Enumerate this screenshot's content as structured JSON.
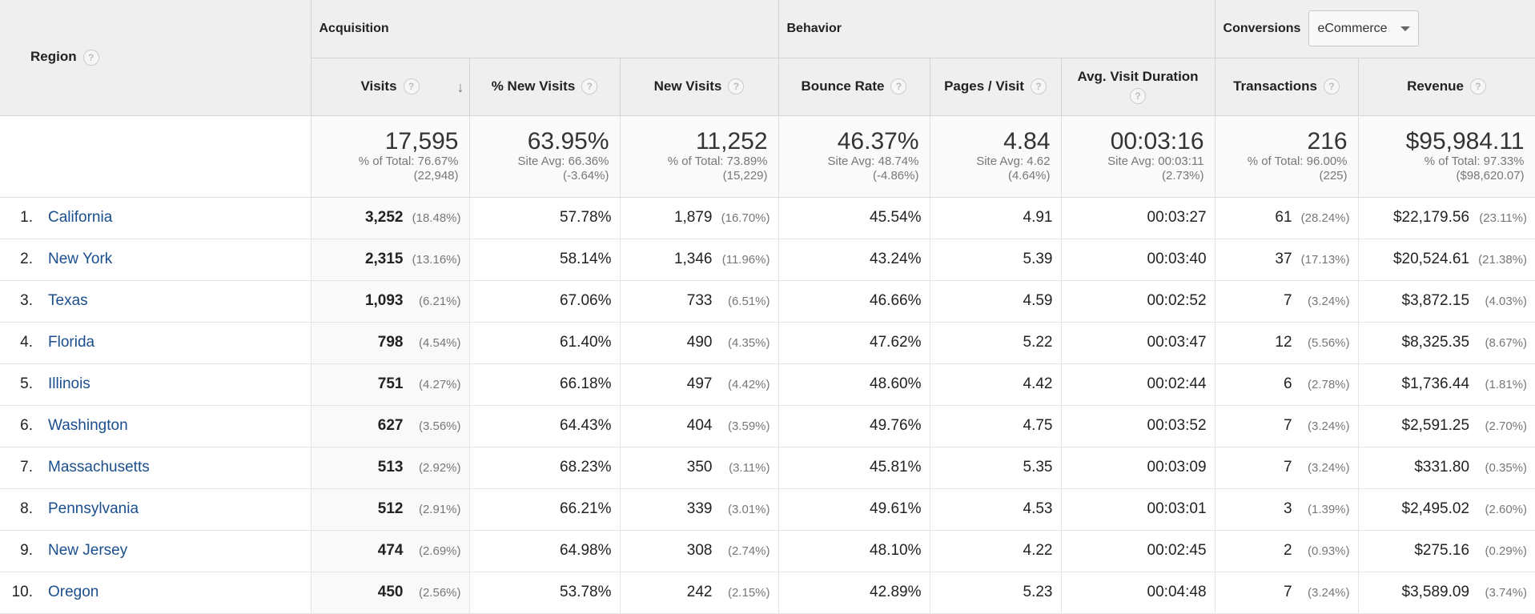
{
  "header": {
    "region_label": "Region",
    "group_acquisition": "Acquisition",
    "group_behavior": "Behavior",
    "group_conversions": "Conversions",
    "conversion_select_value": "eCommerce",
    "help_glyph": "?",
    "sort_glyph": "↓",
    "columns": [
      "Visits",
      "% New Visits",
      "New Visits",
      "Bounce Rate",
      "Pages / Visit",
      "Avg. Visit Duration",
      "Transactions",
      "Revenue"
    ]
  },
  "totals": [
    {
      "value": "17,595",
      "line1": "% of Total: 76.67%",
      "line2": "(22,948)"
    },
    {
      "value": "63.95%",
      "line1": "Site Avg: 66.36%",
      "line2": "(-3.64%)"
    },
    {
      "value": "11,252",
      "line1": "% of Total: 73.89%",
      "line2": "(15,229)"
    },
    {
      "value": "46.37%",
      "line1": "Site Avg: 48.74%",
      "line2": "(-4.86%)"
    },
    {
      "value": "4.84",
      "line1": "Site Avg: 4.62",
      "line2": "(4.64%)"
    },
    {
      "value": "00:03:16",
      "line1": "Site Avg: 00:03:11",
      "line2": "(2.73%)"
    },
    {
      "value": "216",
      "line1": "% of Total: 96.00%",
      "line2": "(225)"
    },
    {
      "value": "$95,984.11",
      "line1": "% of Total: 97.33%",
      "line2": "($98,620.07)"
    }
  ],
  "rows": [
    {
      "idx": "1.",
      "region": "California",
      "visits": "3,252",
      "visits_pct": "(18.48%)",
      "new_pct": "57.78%",
      "new_visits": "1,879",
      "new_visits_pct": "(16.70%)",
      "bounce": "45.54%",
      "pages": "4.91",
      "duration": "00:03:27",
      "trans": "61",
      "trans_pct": "(28.24%)",
      "revenue": "$22,179.56",
      "revenue_pct": "(23.11%)"
    },
    {
      "idx": "2.",
      "region": "New York",
      "visits": "2,315",
      "visits_pct": "(13.16%)",
      "new_pct": "58.14%",
      "new_visits": "1,346",
      "new_visits_pct": "(11.96%)",
      "bounce": "43.24%",
      "pages": "5.39",
      "duration": "00:03:40",
      "trans": "37",
      "trans_pct": "(17.13%)",
      "revenue": "$20,524.61",
      "revenue_pct": "(21.38%)"
    },
    {
      "idx": "3.",
      "region": "Texas",
      "visits": "1,093",
      "visits_pct": "(6.21%)",
      "new_pct": "67.06%",
      "new_visits": "733",
      "new_visits_pct": "(6.51%)",
      "bounce": "46.66%",
      "pages": "4.59",
      "duration": "00:02:52",
      "trans": "7",
      "trans_pct": "(3.24%)",
      "revenue": "$3,872.15",
      "revenue_pct": "(4.03%)"
    },
    {
      "idx": "4.",
      "region": "Florida",
      "visits": "798",
      "visits_pct": "(4.54%)",
      "new_pct": "61.40%",
      "new_visits": "490",
      "new_visits_pct": "(4.35%)",
      "bounce": "47.62%",
      "pages": "5.22",
      "duration": "00:03:47",
      "trans": "12",
      "trans_pct": "(5.56%)",
      "revenue": "$8,325.35",
      "revenue_pct": "(8.67%)"
    },
    {
      "idx": "5.",
      "region": "Illinois",
      "visits": "751",
      "visits_pct": "(4.27%)",
      "new_pct": "66.18%",
      "new_visits": "497",
      "new_visits_pct": "(4.42%)",
      "bounce": "48.60%",
      "pages": "4.42",
      "duration": "00:02:44",
      "trans": "6",
      "trans_pct": "(2.78%)",
      "revenue": "$1,736.44",
      "revenue_pct": "(1.81%)"
    },
    {
      "idx": "6.",
      "region": "Washington",
      "visits": "627",
      "visits_pct": "(3.56%)",
      "new_pct": "64.43%",
      "new_visits": "404",
      "new_visits_pct": "(3.59%)",
      "bounce": "49.76%",
      "pages": "4.75",
      "duration": "00:03:52",
      "trans": "7",
      "trans_pct": "(3.24%)",
      "revenue": "$2,591.25",
      "revenue_pct": "(2.70%)"
    },
    {
      "idx": "7.",
      "region": "Massachusetts",
      "visits": "513",
      "visits_pct": "(2.92%)",
      "new_pct": "68.23%",
      "new_visits": "350",
      "new_visits_pct": "(3.11%)",
      "bounce": "45.81%",
      "pages": "5.35",
      "duration": "00:03:09",
      "trans": "7",
      "trans_pct": "(3.24%)",
      "revenue": "$331.80",
      "revenue_pct": "(0.35%)"
    },
    {
      "idx": "8.",
      "region": "Pennsylvania",
      "visits": "512",
      "visits_pct": "(2.91%)",
      "new_pct": "66.21%",
      "new_visits": "339",
      "new_visits_pct": "(3.01%)",
      "bounce": "49.61%",
      "pages": "4.53",
      "duration": "00:03:01",
      "trans": "3",
      "trans_pct": "(1.39%)",
      "revenue": "$2,495.02",
      "revenue_pct": "(2.60%)"
    },
    {
      "idx": "9.",
      "region": "New Jersey",
      "visits": "474",
      "visits_pct": "(2.69%)",
      "new_pct": "64.98%",
      "new_visits": "308",
      "new_visits_pct": "(2.74%)",
      "bounce": "48.10%",
      "pages": "4.22",
      "duration": "00:02:45",
      "trans": "2",
      "trans_pct": "(0.93%)",
      "revenue": "$275.16",
      "revenue_pct": "(0.29%)"
    },
    {
      "idx": "10.",
      "region": "Oregon",
      "visits": "450",
      "visits_pct": "(2.56%)",
      "new_pct": "53.78%",
      "new_visits": "242",
      "new_visits_pct": "(2.15%)",
      "bounce": "42.89%",
      "pages": "5.23",
      "duration": "00:04:48",
      "trans": "7",
      "trans_pct": "(3.24%)",
      "revenue": "$3,589.09",
      "revenue_pct": "(3.74%)"
    }
  ],
  "colors": {
    "link": "#1a4e8c",
    "header_bg": "#efefef",
    "muted": "#777777"
  }
}
